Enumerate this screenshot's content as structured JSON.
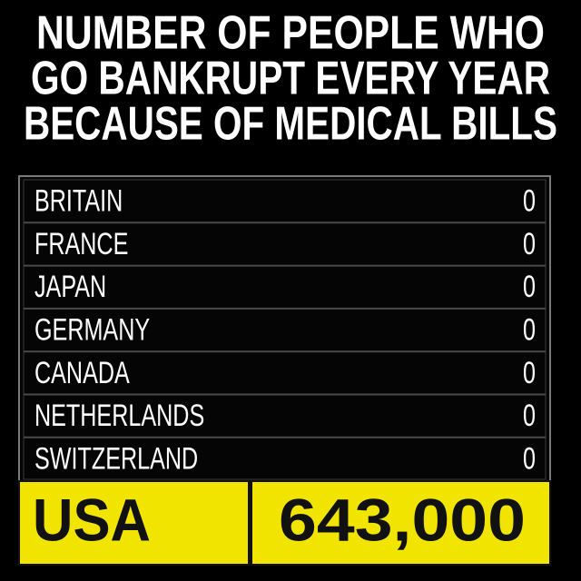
{
  "header": {
    "title_lines": [
      "NUMBER OF PEOPLE WHO",
      "GO BANKRUPT EVERY YEAR",
      "BECAUSE OF MEDICAL BILLS"
    ]
  },
  "table": {
    "rows": [
      [
        "BRITAIN",
        "0"
      ],
      [
        "FRANCE",
        "0"
      ],
      [
        "JAPAN",
        "0"
      ],
      [
        "GERMANY",
        "0"
      ],
      [
        "CANADA",
        "0"
      ],
      [
        "NETHERLANDS",
        "0"
      ],
      [
        "SWITZERLAND",
        "0"
      ]
    ],
    "highlight": [
      "USA",
      "643,000"
    ]
  }
}
